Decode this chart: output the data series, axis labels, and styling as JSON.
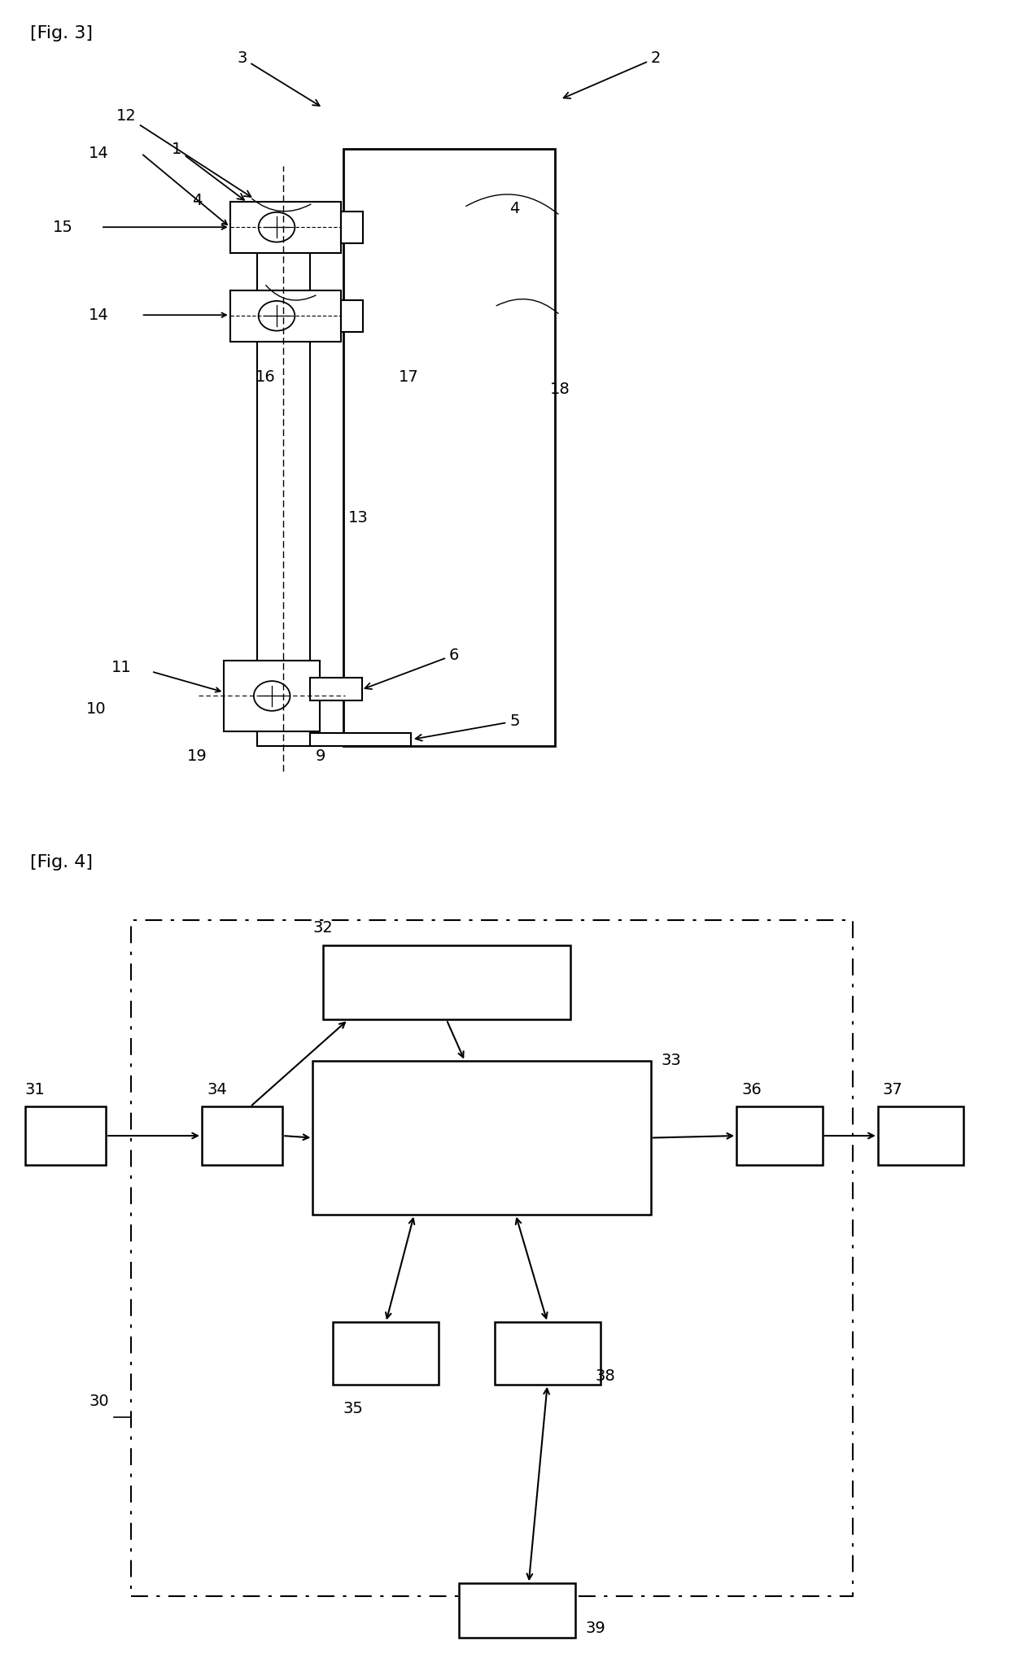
{
  "fig3_label": "[Fig. 3]",
  "fig4_label": "[Fig. 4]",
  "bg_color": "#ffffff",
  "line_color": "#000000"
}
